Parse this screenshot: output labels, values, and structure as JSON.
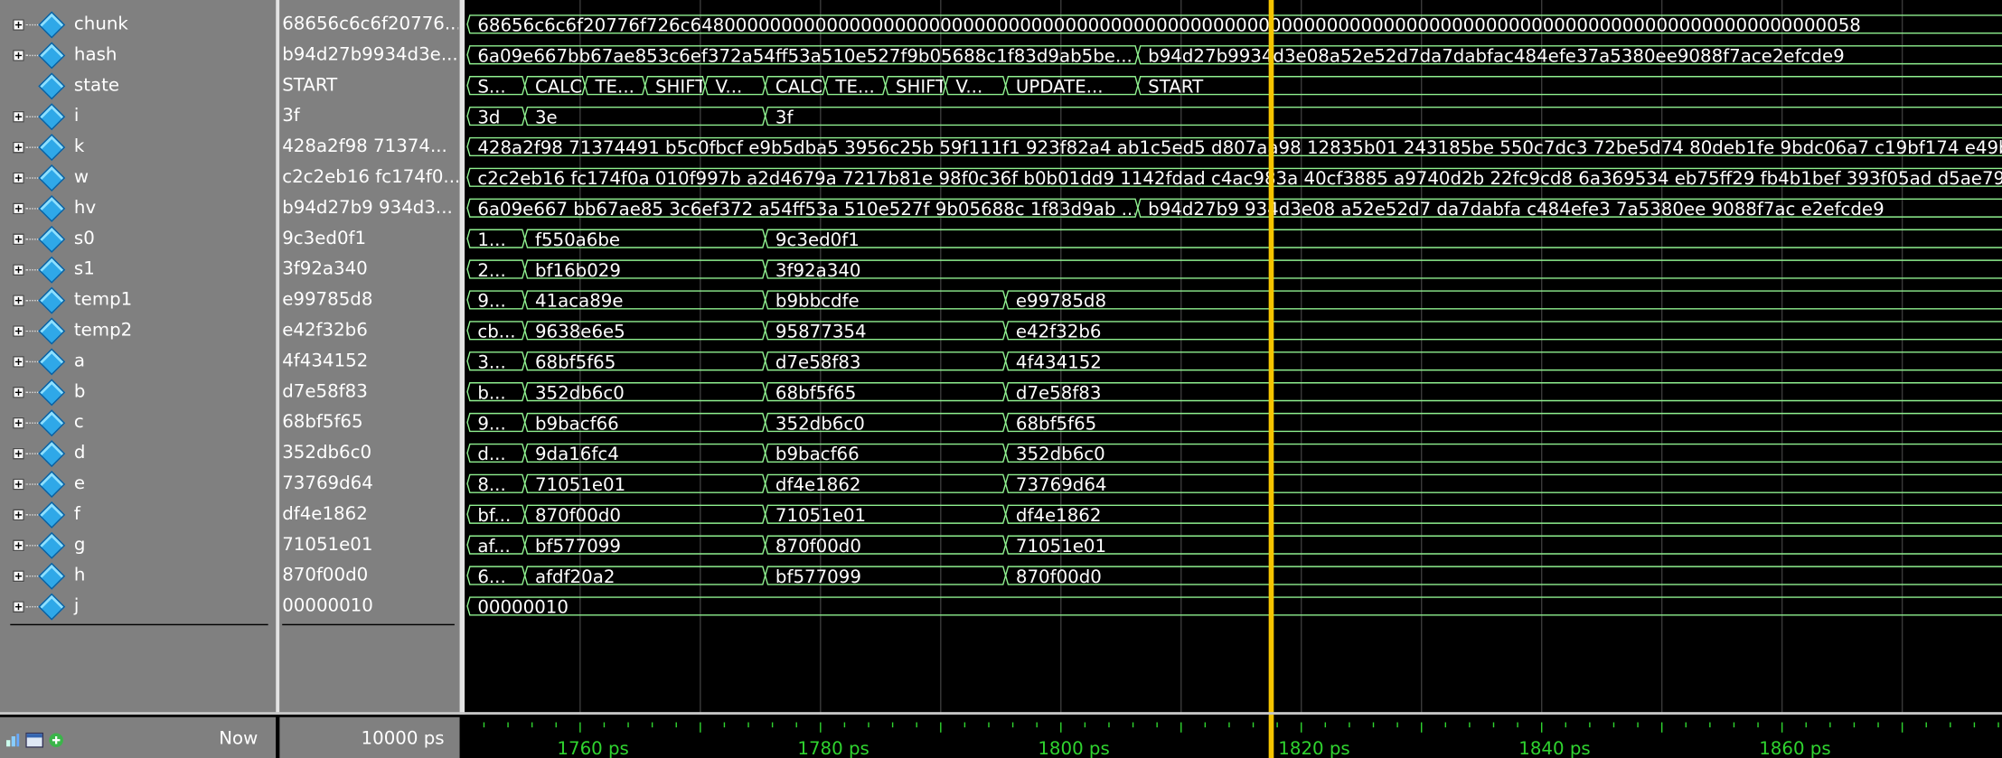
{
  "toolbar": {
    "icons": [
      "zoom-icon",
      "window-icon",
      "add-cursor-icon"
    ]
  },
  "now": {
    "label": "Now",
    "value": "10000 ps"
  },
  "signals": [
    {
      "name": "chunk",
      "value": "68656c6c6f20776...",
      "expandable": true
    },
    {
      "name": "hash",
      "value": "b94d27b9934d3e...",
      "expandable": true
    },
    {
      "name": "state",
      "value": "START",
      "expandable": false
    },
    {
      "name": "i",
      "value": "3f",
      "expandable": true
    },
    {
      "name": "k",
      "value": "428a2f98 71374...",
      "expandable": true
    },
    {
      "name": "w",
      "value": "c2c2eb16 fc174f0...",
      "expandable": true
    },
    {
      "name": "hv",
      "value": "b94d27b9 934d3...",
      "expandable": true
    },
    {
      "name": "s0",
      "value": "9c3ed0f1",
      "expandable": true
    },
    {
      "name": "s1",
      "value": "3f92a340",
      "expandable": true
    },
    {
      "name": "temp1",
      "value": "e99785d8",
      "expandable": true
    },
    {
      "name": "temp2",
      "value": "e42f32b6",
      "expandable": true
    },
    {
      "name": "a",
      "value": "4f434152",
      "expandable": true
    },
    {
      "name": "b",
      "value": "d7e58f83",
      "expandable": true
    },
    {
      "name": "c",
      "value": "68bf5f65",
      "expandable": true
    },
    {
      "name": "d",
      "value": "352db6c0",
      "expandable": true
    },
    {
      "name": "e",
      "value": "73769d64",
      "expandable": true
    },
    {
      "name": "f",
      "value": "df4e1862",
      "expandable": true
    },
    {
      "name": "g",
      "value": "71051e01",
      "expandable": true
    },
    {
      "name": "h",
      "value": "870f00d0",
      "expandable": true
    },
    {
      "name": "j",
      "value": "00000010",
      "expandable": true
    }
  ],
  "timeline": {
    "start_ps": 1750.4,
    "end_ps": 1878.3,
    "cursor_ps": 1817.5,
    "tick_labels": [
      {
        "t": 1760,
        "label": "1760 ps"
      },
      {
        "t": 1780,
        "label": "1780 ps"
      },
      {
        "t": 1800,
        "label": "1800 ps"
      },
      {
        "t": 1820,
        "label": "1820 ps"
      },
      {
        "t": 1840,
        "label": "1840 ps"
      },
      {
        "t": 1860,
        "label": "1860 ps"
      }
    ],
    "gridlines_ps": [
      1760,
      1770,
      1780,
      1790,
      1800,
      1810,
      1820,
      1830,
      1840,
      1850,
      1860,
      1870
    ]
  },
  "waves": [
    [
      {
        "t": 1750.4,
        "text": "68656c6c6f20776f726c6480000000000000000000000000000000000000000000000000000000000000000000000000000000000000000000000000058"
      }
    ],
    [
      {
        "t": 1750.4,
        "text": "6a09e667bb67ae853c6ef372a54ff53a510e527f9b05688c1f83d9ab5be..."
      },
      {
        "t": 1806.4,
        "text": "b94d27b9934d3e08a52e52d7da7dabfac484efe37a5380ee9088f7ace2efcde9"
      }
    ],
    [
      {
        "t": 1750.4,
        "text": "S..."
      },
      {
        "t": 1755.4,
        "text": "CALC"
      },
      {
        "t": 1760.4,
        "text": "TE..."
      },
      {
        "t": 1765.4,
        "text": "SHIFT"
      },
      {
        "t": 1770.4,
        "text": "V..."
      },
      {
        "t": 1775.4,
        "text": "CALC"
      },
      {
        "t": 1780.4,
        "text": "TE..."
      },
      {
        "t": 1785.4,
        "text": "SHIFT"
      },
      {
        "t": 1790.4,
        "text": "V..."
      },
      {
        "t": 1795.4,
        "text": "UPDATE..."
      },
      {
        "t": 1806.4,
        "text": "START"
      }
    ],
    [
      {
        "t": 1750.4,
        "text": "3d"
      },
      {
        "t": 1755.4,
        "text": "3e"
      },
      {
        "t": 1775.4,
        "text": "3f"
      }
    ],
    [
      {
        "t": 1750.4,
        "text": "428a2f98 71374491 b5c0fbcf e9b5dba5 3956c25b 59f111f1 923f82a4 ab1c5ed5 d807aa98 12835b01 243185be 550c7dc3 72be5d74 80deb1fe 9bdc06a7 c19bf174 e49b..."
      }
    ],
    [
      {
        "t": 1750.4,
        "text": "c2c2eb16 fc174f0a 010f997b a2d4679a 7217b81e 98f0c36f b0b01dd9 1142fdad c4ac983a 40cf3885 a9740d2b 22fc9cd8 6a369534 eb75ff29 fb4b1bef 393f05ad d5ae79..."
      }
    ],
    [
      {
        "t": 1750.4,
        "text": "6a09e667 bb67ae85 3c6ef372 a54ff53a 510e527f 9b05688c 1f83d9ab ..."
      },
      {
        "t": 1806.4,
        "text": "b94d27b9 934d3e08 a52e52d7 da7dabfa c484efe3 7a5380ee 9088f7ac e2efcde9"
      }
    ],
    [
      {
        "t": 1750.4,
        "text": "1..."
      },
      {
        "t": 1755.4,
        "text": "f550a6be"
      },
      {
        "t": 1775.4,
        "text": "9c3ed0f1"
      }
    ],
    [
      {
        "t": 1750.4,
        "text": "2..."
      },
      {
        "t": 1755.4,
        "text": "bf16b029"
      },
      {
        "t": 1775.4,
        "text": "3f92a340"
      }
    ],
    [
      {
        "t": 1750.4,
        "text": "9..."
      },
      {
        "t": 1755.4,
        "text": "41aca89e"
      },
      {
        "t": 1775.4,
        "text": "b9bbcdfe"
      },
      {
        "t": 1795.4,
        "text": "e99785d8"
      }
    ],
    [
      {
        "t": 1750.4,
        "text": "cb..."
      },
      {
        "t": 1755.4,
        "text": "9638e6e5"
      },
      {
        "t": 1775.4,
        "text": "95877354"
      },
      {
        "t": 1795.4,
        "text": "e42f32b6"
      }
    ],
    [
      {
        "t": 1750.4,
        "text": "3..."
      },
      {
        "t": 1755.4,
        "text": "68bf5f65"
      },
      {
        "t": 1775.4,
        "text": "d7e58f83"
      },
      {
        "t": 1795.4,
        "text": "4f434152"
      }
    ],
    [
      {
        "t": 1750.4,
        "text": "b..."
      },
      {
        "t": 1755.4,
        "text": "352db6c0"
      },
      {
        "t": 1775.4,
        "text": "68bf5f65"
      },
      {
        "t": 1795.4,
        "text": "d7e58f83"
      }
    ],
    [
      {
        "t": 1750.4,
        "text": "9..."
      },
      {
        "t": 1755.4,
        "text": "b9bacf66"
      },
      {
        "t": 1775.4,
        "text": "352db6c0"
      },
      {
        "t": 1795.4,
        "text": "68bf5f65"
      }
    ],
    [
      {
        "t": 1750.4,
        "text": "d..."
      },
      {
        "t": 1755.4,
        "text": "9da16fc4"
      },
      {
        "t": 1775.4,
        "text": "b9bacf66"
      },
      {
        "t": 1795.4,
        "text": "352db6c0"
      }
    ],
    [
      {
        "t": 1750.4,
        "text": "8..."
      },
      {
        "t": 1755.4,
        "text": "71051e01"
      },
      {
        "t": 1775.4,
        "text": "df4e1862"
      },
      {
        "t": 1795.4,
        "text": "73769d64"
      }
    ],
    [
      {
        "t": 1750.4,
        "text": "bf..."
      },
      {
        "t": 1755.4,
        "text": "870f00d0"
      },
      {
        "t": 1775.4,
        "text": "71051e01"
      },
      {
        "t": 1795.4,
        "text": "df4e1862"
      }
    ],
    [
      {
        "t": 1750.4,
        "text": "af..."
      },
      {
        "t": 1755.4,
        "text": "bf577099"
      },
      {
        "t": 1775.4,
        "text": "870f00d0"
      },
      {
        "t": 1795.4,
        "text": "71051e01"
      }
    ],
    [
      {
        "t": 1750.4,
        "text": "6..."
      },
      {
        "t": 1755.4,
        "text": "afdf20a2"
      },
      {
        "t": 1775.4,
        "text": "bf577099"
      },
      {
        "t": 1795.4,
        "text": "870f00d0"
      }
    ],
    [
      {
        "t": 1750.4,
        "text": "00000010"
      }
    ]
  ],
  "colors": {
    "wave": "#8ff08f",
    "cursor": "#f5c400",
    "grid": "#3a3a3a",
    "ruler_text": "#2fd42f",
    "icon": "#2fa8e8"
  }
}
